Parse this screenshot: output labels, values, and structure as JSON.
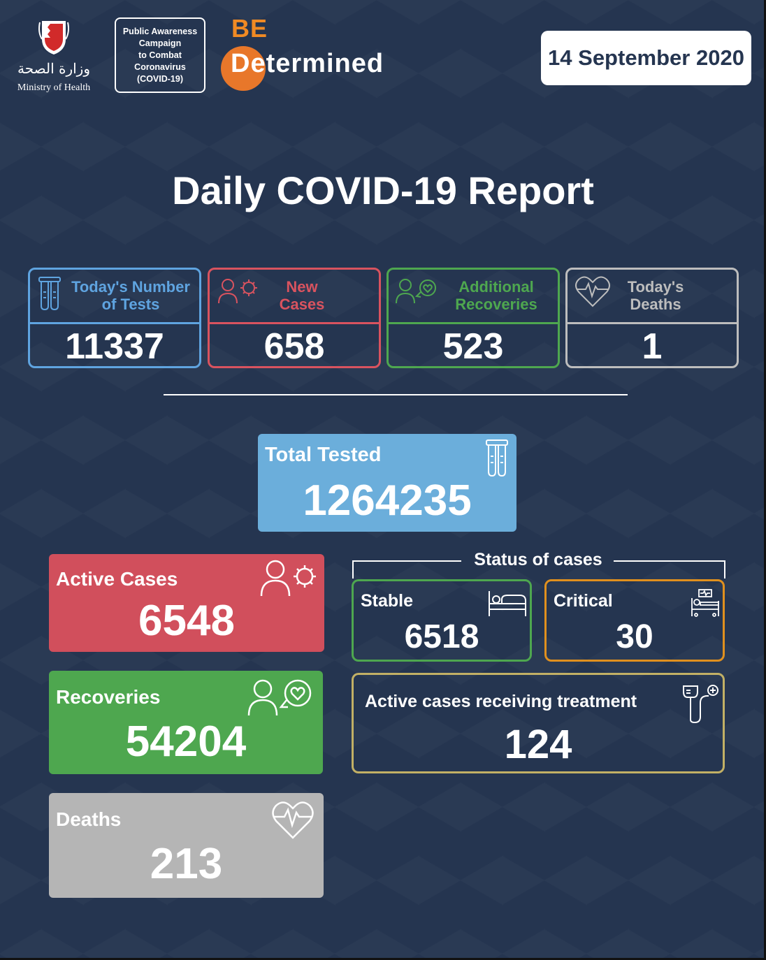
{
  "header": {
    "ministry_arabic": "وزارة الصحة",
    "ministry_english": "Ministry of Health",
    "campaign_lines": [
      "Public Awareness",
      "Campaign",
      "to Combat",
      "Coronavirus",
      "(COVID-19)"
    ],
    "slogan_top": "BE",
    "slogan_bottom": "Determined",
    "date": "14 September 2020"
  },
  "title": "Daily COVID-19 Report",
  "daily_stats": [
    {
      "label_line1": "Today's Number",
      "label_line2": "of Tests",
      "value": "11337",
      "color": "#5fa4e0",
      "icon": "test-tubes-icon"
    },
    {
      "label_line1": "New",
      "label_line2": "Cases",
      "value": "658",
      "color": "#d9535f",
      "icon": "person-virus-icon"
    },
    {
      "label_line1": "Additional",
      "label_line2": "Recoveries",
      "value": "523",
      "color": "#4ea74f",
      "icon": "person-heart-icon"
    },
    {
      "label_line1": "Today's",
      "label_line2": "Deaths",
      "value": "1",
      "color": "#bdbdbd",
      "icon": "heartbeat-icon"
    }
  ],
  "total_tested": {
    "label": "Total Tested",
    "value": "1264235",
    "color": "#6baedb"
  },
  "active_cases": {
    "label": "Active Cases",
    "value": "6548",
    "color": "#d14f5c"
  },
  "recoveries": {
    "label": "Recoveries",
    "value": "54204",
    "color": "#4ea74f"
  },
  "deaths": {
    "label": "Deaths",
    "value": "213",
    "color": "#b5b5b5"
  },
  "status_of_cases": {
    "title": "Status of cases",
    "stable": {
      "label": "Stable",
      "value": "6518",
      "color": "#4ea74f"
    },
    "critical": {
      "label": "Critical",
      "value": "30",
      "color": "#e0901e"
    },
    "treatment": {
      "label": "Active cases receiving treatment",
      "value": "124",
      "color": "#c2b065"
    }
  }
}
